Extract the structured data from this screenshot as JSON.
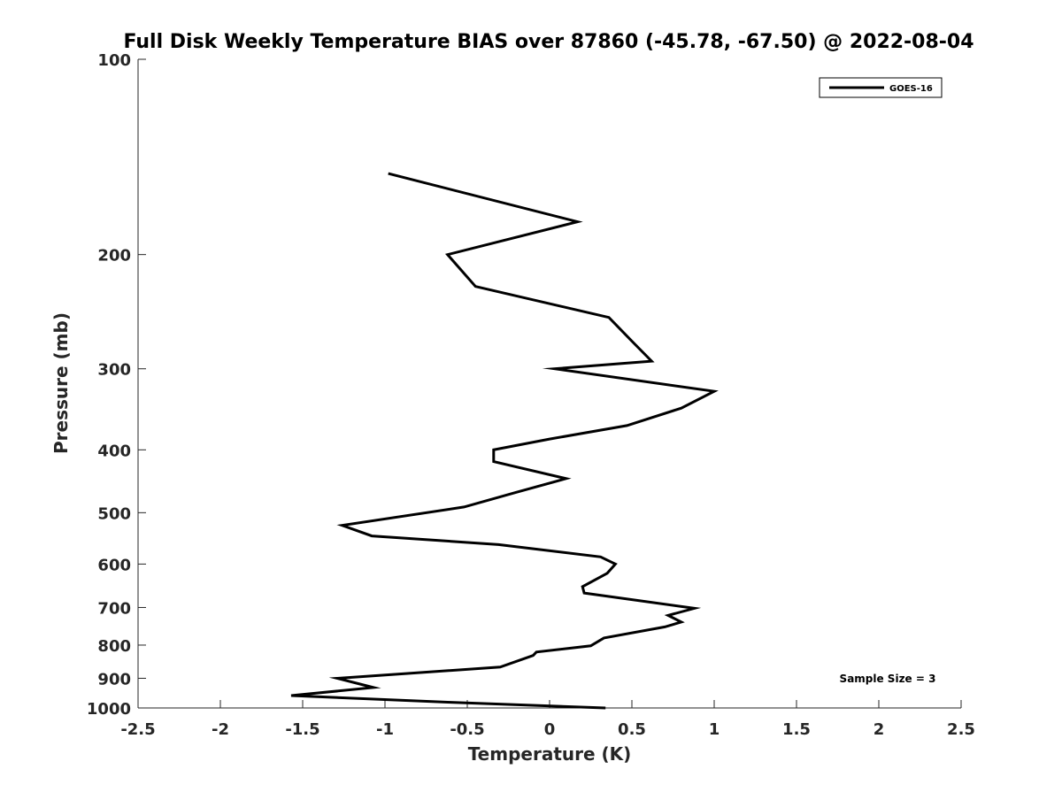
{
  "chart_data": {
    "type": "line",
    "title": "Full Disk Weekly Temperature BIAS over 87860 (-45.78, -67.50) @ 2022-08-04",
    "xlabel": "Temperature (K)",
    "ylabel": "Pressure (mb)",
    "xlim": [
      -2.5,
      2.5
    ],
    "ylim": [
      100,
      1000
    ],
    "yscale": "log",
    "yreversed": true,
    "grid": false,
    "x_ticks": [
      -2.5,
      -2,
      -1.5,
      -1,
      -0.5,
      0,
      0.5,
      1,
      1.5,
      2,
      2.5
    ],
    "x_tick_labels": [
      "-2.5",
      "-2",
      "-1.5",
      "-1",
      "-0.5",
      "0",
      "0.5",
      "1",
      "1.5",
      "2",
      "2.5"
    ],
    "y_ticks": [
      100,
      200,
      300,
      400,
      500,
      600,
      700,
      800,
      900,
      1000
    ],
    "y_tick_labels": [
      "100",
      "200",
      "300",
      "400",
      "500",
      "600",
      "700",
      "800",
      "900",
      "1000"
    ],
    "legend": {
      "entries": [
        "GOES-16"
      ],
      "location": "top-right"
    },
    "annotation": "Sample Size = 3",
    "series": [
      {
        "name": "GOES-16",
        "color": "#000000",
        "points": [
          {
            "x": -0.98,
            "y": 150
          },
          {
            "x": 0.17,
            "y": 178
          },
          {
            "x": -0.62,
            "y": 200
          },
          {
            "x": -0.45,
            "y": 224
          },
          {
            "x": 0.36,
            "y": 250
          },
          {
            "x": 0.5,
            "y": 272
          },
          {
            "x": 0.62,
            "y": 292
          },
          {
            "x": 0.03,
            "y": 300
          },
          {
            "x": 1.0,
            "y": 325
          },
          {
            "x": 0.8,
            "y": 345
          },
          {
            "x": 0.47,
            "y": 367
          },
          {
            "x": 0.0,
            "y": 385
          },
          {
            "x": -0.34,
            "y": 400
          },
          {
            "x": -0.34,
            "y": 417
          },
          {
            "x": 0.1,
            "y": 443
          },
          {
            "x": -0.2,
            "y": 465
          },
          {
            "x": -0.52,
            "y": 490
          },
          {
            "x": -1.26,
            "y": 523
          },
          {
            "x": -1.08,
            "y": 543
          },
          {
            "x": -0.31,
            "y": 560
          },
          {
            "x": 0.31,
            "y": 585
          },
          {
            "x": 0.4,
            "y": 600
          },
          {
            "x": 0.35,
            "y": 620
          },
          {
            "x": 0.2,
            "y": 650
          },
          {
            "x": 0.21,
            "y": 665
          },
          {
            "x": 0.88,
            "y": 702
          },
          {
            "x": 0.72,
            "y": 720
          },
          {
            "x": 0.8,
            "y": 737
          },
          {
            "x": 0.7,
            "y": 750
          },
          {
            "x": 0.33,
            "y": 780
          },
          {
            "x": 0.25,
            "y": 802
          },
          {
            "x": -0.08,
            "y": 820
          },
          {
            "x": -0.1,
            "y": 830
          },
          {
            "x": -0.3,
            "y": 865
          },
          {
            "x": -1.29,
            "y": 900
          },
          {
            "x": -1.07,
            "y": 930
          },
          {
            "x": -1.57,
            "y": 957
          },
          {
            "x": -0.6,
            "y": 980
          },
          {
            "x": 0.34,
            "y": 1000
          }
        ]
      }
    ]
  }
}
